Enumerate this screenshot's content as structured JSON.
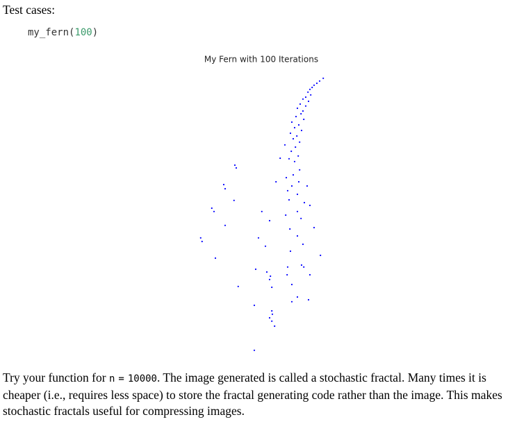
{
  "heading": "Test cases:",
  "code": {
    "call": "my_fern(",
    "arg": "100",
    "close": ")"
  },
  "chart_data": {
    "type": "scatter",
    "title": "My Fern with 100 Iterations",
    "color": "#0000ff",
    "xlim": [
      -2.5,
      2.5
    ],
    "ylim": [
      0,
      10
    ],
    "x": [
      2.13,
      2.0,
      1.9,
      1.8,
      1.73,
      1.65,
      1.58,
      1.68,
      1.5,
      1.4,
      1.6,
      1.3,
      1.5,
      1.2,
      1.4,
      1.33,
      1.15,
      1.43,
      1.0,
      1.25,
      1.1,
      1.35,
      0.95,
      1.18,
      1.05,
      1.28,
      0.75,
      1.13,
      0.98,
      1.23,
      0.9,
      1.1,
      -1.05,
      -1.0,
      1.28,
      0.58,
      1.05,
      0.8,
      0.43,
      1.25,
      -1.45,
      1.0,
      -1.4,
      1.55,
      0.85,
      1.2,
      -1.08,
      0.9,
      1.45,
      1.65,
      -1.88,
      -1.8,
      1.2,
      -0.08,
      0.78,
      1.33,
      0.2,
      -1.4,
      1.8,
      0.93,
      -2.28,
      -2.23,
      -0.2,
      1.2,
      0.05,
      1.4,
      0.95,
      2.03,
      -1.75,
      0.85,
      1.35,
      1.43,
      -0.3,
      0.1,
      1.65,
      0.23,
      0.2,
      0.83,
      0.28,
      1.0,
      -0.93,
      1.2,
      1.0,
      1.6,
      -0.35,
      0.28,
      0.3,
      0.2,
      0.28,
      0.38,
      -0.35
    ],
    "y": [
      9.93,
      9.83,
      9.75,
      9.68,
      9.6,
      9.53,
      9.43,
      9.33,
      9.25,
      9.18,
      9.1,
      9.0,
      8.93,
      8.85,
      8.75,
      8.65,
      8.55,
      8.45,
      8.35,
      8.25,
      8.15,
      8.05,
      7.95,
      7.85,
      7.75,
      7.63,
      7.53,
      7.45,
      7.3,
      7.13,
      7.03,
      6.93,
      6.8,
      6.7,
      6.63,
      7.05,
      6.45,
      6.35,
      6.2,
      6.2,
      6.1,
      6.05,
      5.95,
      6.05,
      5.88,
      5.75,
      5.53,
      5.55,
      5.45,
      5.35,
      5.25,
      5.13,
      5.13,
      5.13,
      5.0,
      4.88,
      4.8,
      4.63,
      4.55,
      4.5,
      4.18,
      4.05,
      4.18,
      4.25,
      3.88,
      3.95,
      3.7,
      3.55,
      3.45,
      3.13,
      3.2,
      3.13,
      3.05,
      2.95,
      2.85,
      2.8,
      2.68,
      2.85,
      2.4,
      2.5,
      2.43,
      2.05,
      1.88,
      1.95,
      1.75,
      1.55,
      1.43,
      1.3,
      1.18,
      1.0,
      0.13
    ]
  },
  "paragraph": {
    "before": "Try your function for ",
    "code_var": "n",
    "code_op": "=",
    "code_value": "10000",
    "after": ". The image generated is called a stochastic fractal. Many times it is cheaper (i.e., requires less space) to store the fractal generating code rather than the image. This makes stochastic fractals useful for compressing images."
  }
}
